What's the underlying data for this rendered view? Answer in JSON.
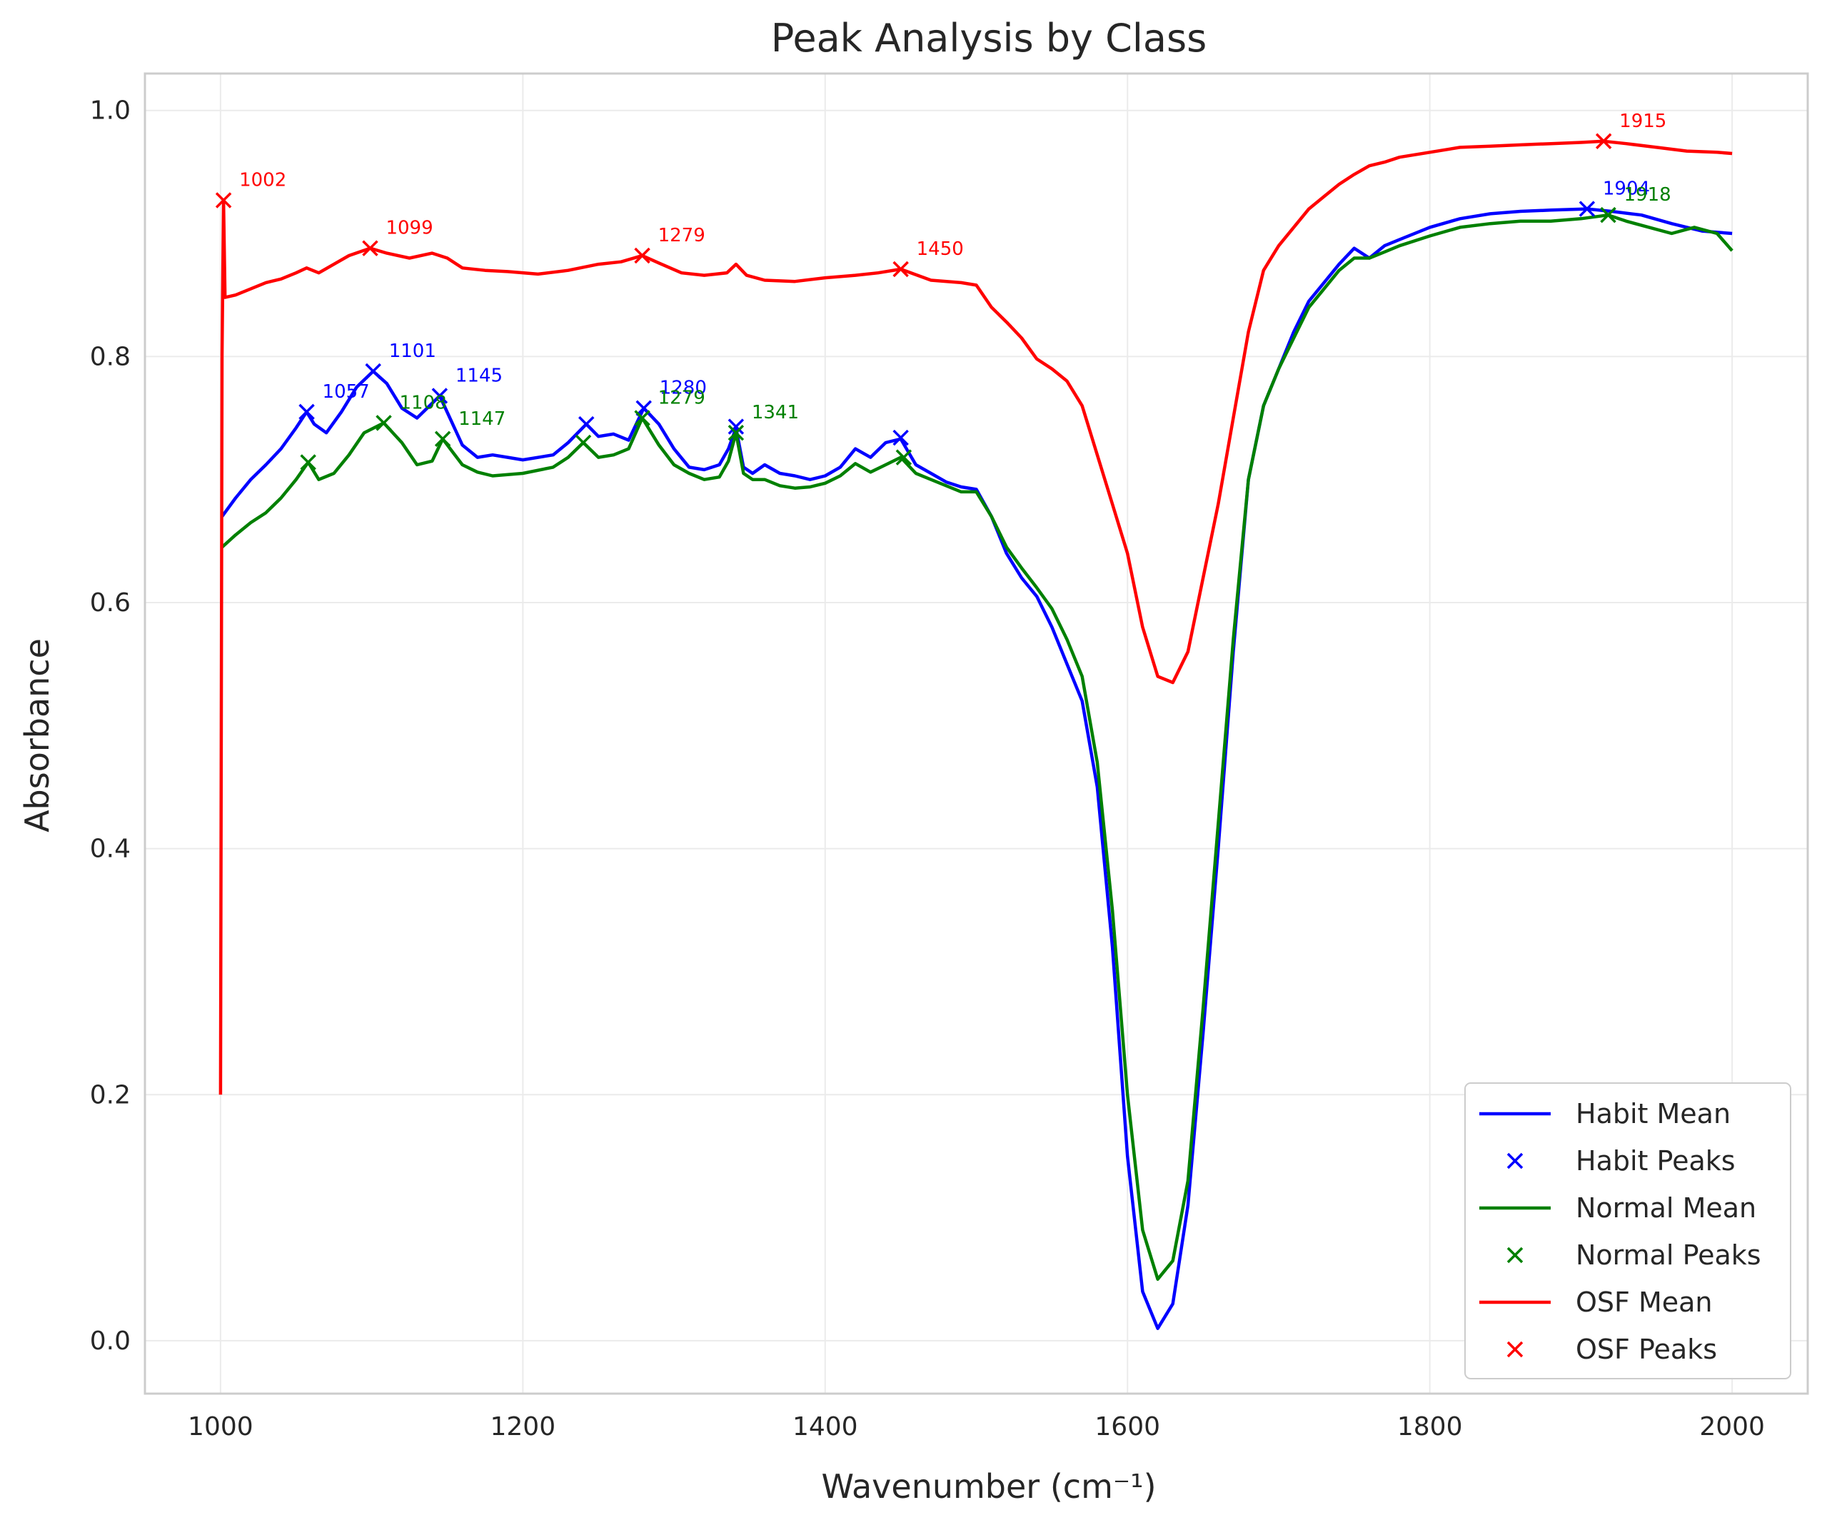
{
  "chart_data": {
    "type": "line",
    "title": "Peak Analysis by Class",
    "xlabel": "Wavenumber (cm⁻¹)",
    "ylabel": "Absorbance",
    "xlim": [
      950,
      2050
    ],
    "ylim": [
      -0.043,
      1.03
    ],
    "xticks": [
      1000,
      1200,
      1400,
      1600,
      1800,
      2000
    ],
    "xtick_labels": [
      "1000",
      "1200",
      "1400",
      "1600",
      "1800",
      "2000"
    ],
    "yticks": [
      0.0,
      0.2,
      0.4,
      0.6,
      0.8,
      1.0
    ],
    "ytick_labels": [
      "0.0",
      "0.2",
      "0.4",
      "0.6",
      "0.8",
      "1.0"
    ],
    "grid": true,
    "legend_position": "lower-right",
    "legend": [
      {
        "label": "Habit Mean",
        "kind": "line",
        "color": "#0000ff"
      },
      {
        "label": "Habit Peaks",
        "kind": "marker",
        "color": "#0000ff"
      },
      {
        "label": "Normal Mean",
        "kind": "line",
        "color": "#008000"
      },
      {
        "label": "Normal Peaks",
        "kind": "marker",
        "color": "#008000"
      },
      {
        "label": "OSF Mean",
        "kind": "line",
        "color": "#ff0000"
      },
      {
        "label": "OSF Peaks",
        "kind": "marker",
        "color": "#ff0000"
      }
    ],
    "series": [
      {
        "name": "Habit Mean",
        "color": "#0000ff",
        "x": [
          1001,
          1010,
          1020,
          1030,
          1040,
          1050,
          1057,
          1062,
          1070,
          1080,
          1090,
          1101,
          1110,
          1120,
          1130,
          1145,
          1160,
          1170,
          1180,
          1190,
          1200,
          1220,
          1230,
          1242,
          1250,
          1260,
          1270,
          1280,
          1290,
          1300,
          1310,
          1320,
          1330,
          1336,
          1341,
          1346,
          1352,
          1360,
          1370,
          1380,
          1390,
          1400,
          1410,
          1420,
          1430,
          1440,
          1450,
          1460,
          1470,
          1480,
          1490,
          1500,
          1510,
          1520,
          1530,
          1540,
          1550,
          1560,
          1570,
          1580,
          1590,
          1600,
          1610,
          1620,
          1630,
          1640,
          1650,
          1660,
          1670,
          1680,
          1690,
          1700,
          1710,
          1720,
          1730,
          1740,
          1750,
          1760,
          1770,
          1780,
          1800,
          1820,
          1840,
          1860,
          1880,
          1904,
          1920,
          1940,
          1960,
          1980,
          2000
        ],
        "y": [
          0.67,
          0.685,
          0.7,
          0.712,
          0.725,
          0.742,
          0.755,
          0.745,
          0.738,
          0.755,
          0.775,
          0.788,
          0.778,
          0.758,
          0.75,
          0.768,
          0.728,
          0.718,
          0.72,
          0.718,
          0.716,
          0.72,
          0.73,
          0.745,
          0.735,
          0.737,
          0.732,
          0.758,
          0.745,
          0.725,
          0.71,
          0.708,
          0.712,
          0.725,
          0.742,
          0.71,
          0.705,
          0.712,
          0.705,
          0.703,
          0.7,
          0.703,
          0.71,
          0.725,
          0.718,
          0.73,
          0.733,
          0.712,
          0.705,
          0.698,
          0.694,
          0.692,
          0.67,
          0.64,
          0.62,
          0.605,
          0.58,
          0.55,
          0.52,
          0.45,
          0.32,
          0.15,
          0.04,
          0.01,
          0.03,
          0.11,
          0.25,
          0.4,
          0.56,
          0.7,
          0.76,
          0.79,
          0.82,
          0.845,
          0.86,
          0.875,
          0.888,
          0.88,
          0.89,
          0.895,
          0.905,
          0.912,
          0.916,
          0.918,
          0.919,
          0.92,
          0.918,
          0.915,
          0.908,
          0.902,
          0.9
        ]
      },
      {
        "name": "Normal Mean",
        "color": "#008000",
        "x": [
          1001,
          1010,
          1020,
          1030,
          1040,
          1050,
          1058,
          1065,
          1075,
          1085,
          1095,
          1108,
          1120,
          1130,
          1140,
          1147,
          1160,
          1170,
          1180,
          1190,
          1200,
          1220,
          1230,
          1240,
          1250,
          1260,
          1270,
          1279,
          1290,
          1300,
          1310,
          1320,
          1330,
          1336,
          1341,
          1346,
          1352,
          1360,
          1370,
          1380,
          1390,
          1400,
          1410,
          1420,
          1430,
          1440,
          1450,
          1460,
          1470,
          1480,
          1490,
          1500,
          1510,
          1520,
          1530,
          1540,
          1550,
          1560,
          1570,
          1580,
          1590,
          1600,
          1610,
          1620,
          1630,
          1640,
          1650,
          1660,
          1670,
          1680,
          1690,
          1700,
          1710,
          1720,
          1730,
          1740,
          1750,
          1760,
          1770,
          1780,
          1800,
          1820,
          1840,
          1860,
          1880,
          1900,
          1918,
          1930,
          1945,
          1960,
          1975,
          1990,
          2000
        ],
        "y": [
          0.645,
          0.655,
          0.665,
          0.673,
          0.685,
          0.7,
          0.714,
          0.7,
          0.705,
          0.72,
          0.738,
          0.746,
          0.73,
          0.712,
          0.715,
          0.733,
          0.712,
          0.706,
          0.703,
          0.704,
          0.705,
          0.71,
          0.718,
          0.73,
          0.718,
          0.72,
          0.725,
          0.75,
          0.728,
          0.712,
          0.705,
          0.7,
          0.702,
          0.715,
          0.738,
          0.705,
          0.7,
          0.7,
          0.695,
          0.693,
          0.694,
          0.697,
          0.703,
          0.713,
          0.706,
          0.712,
          0.718,
          0.705,
          0.7,
          0.695,
          0.69,
          0.69,
          0.67,
          0.645,
          0.628,
          0.612,
          0.595,
          0.57,
          0.54,
          0.47,
          0.35,
          0.2,
          0.09,
          0.05,
          0.065,
          0.13,
          0.27,
          0.42,
          0.57,
          0.7,
          0.76,
          0.79,
          0.815,
          0.84,
          0.855,
          0.87,
          0.88,
          0.88,
          0.885,
          0.89,
          0.898,
          0.905,
          0.908,
          0.91,
          0.91,
          0.912,
          0.915,
          0.91,
          0.905,
          0.9,
          0.905,
          0.9,
          0.886
        ]
      },
      {
        "name": "OSF Mean",
        "color": "#ff0000",
        "x": [
          1000,
          1001,
          1002,
          1003,
          1010,
          1020,
          1030,
          1040,
          1050,
          1057,
          1065,
          1075,
          1085,
          1099,
          1110,
          1125,
          1140,
          1150,
          1160,
          1175,
          1190,
          1210,
          1230,
          1250,
          1265,
          1279,
          1290,
          1305,
          1320,
          1335,
          1341,
          1348,
          1360,
          1380,
          1400,
          1420,
          1435,
          1450,
          1470,
          1490,
          1500,
          1510,
          1520,
          1530,
          1540,
          1550,
          1560,
          1570,
          1580,
          1590,
          1600,
          1610,
          1620,
          1630,
          1640,
          1650,
          1660,
          1670,
          1680,
          1690,
          1700,
          1710,
          1720,
          1730,
          1740,
          1750,
          1760,
          1770,
          1780,
          1800,
          1820,
          1840,
          1860,
          1880,
          1900,
          1915,
          1930,
          1950,
          1970,
          1990,
          2000
        ],
        "y": [
          0.2,
          0.8,
          0.927,
          0.848,
          0.85,
          0.855,
          0.86,
          0.863,
          0.868,
          0.872,
          0.868,
          0.875,
          0.882,
          0.888,
          0.884,
          0.88,
          0.884,
          0.88,
          0.872,
          0.87,
          0.869,
          0.867,
          0.87,
          0.875,
          0.877,
          0.882,
          0.876,
          0.868,
          0.866,
          0.868,
          0.875,
          0.866,
          0.862,
          0.861,
          0.864,
          0.866,
          0.868,
          0.871,
          0.862,
          0.86,
          0.858,
          0.84,
          0.828,
          0.815,
          0.798,
          0.79,
          0.78,
          0.76,
          0.72,
          0.68,
          0.64,
          0.58,
          0.54,
          0.535,
          0.56,
          0.62,
          0.68,
          0.75,
          0.82,
          0.87,
          0.89,
          0.905,
          0.92,
          0.93,
          0.94,
          0.948,
          0.955,
          0.958,
          0.962,
          0.966,
          0.97,
          0.971,
          0.972,
          0.973,
          0.974,
          0.975,
          0.973,
          0.97,
          0.967,
          0.966,
          0.965
        ]
      }
    ],
    "peaks": [
      {
        "series": "Habit",
        "color": "#0000ff",
        "points": [
          {
            "x": 1057,
            "y": 0.755,
            "label": "1057"
          },
          {
            "x": 1101,
            "y": 0.788,
            "label": "1101"
          },
          {
            "x": 1145,
            "y": 0.768,
            "label": "1145"
          },
          {
            "x": 1242,
            "y": 0.745,
            "label": ""
          },
          {
            "x": 1280,
            "y": 0.758,
            "label": "1280"
          },
          {
            "x": 1341,
            "y": 0.743,
            "label": ""
          },
          {
            "x": 1450,
            "y": 0.734,
            "label": ""
          },
          {
            "x": 1904,
            "y": 0.92,
            "label": "1904"
          }
        ]
      },
      {
        "series": "Normal",
        "color": "#008000",
        "points": [
          {
            "x": 1058,
            "y": 0.714,
            "label": ""
          },
          {
            "x": 1108,
            "y": 0.746,
            "label": "1108"
          },
          {
            "x": 1147,
            "y": 0.733,
            "label": "1147"
          },
          {
            "x": 1240,
            "y": 0.73,
            "label": ""
          },
          {
            "x": 1279,
            "y": 0.75,
            "label": "1279"
          },
          {
            "x": 1341,
            "y": 0.738,
            "label": "1341"
          },
          {
            "x": 1452,
            "y": 0.718,
            "label": ""
          },
          {
            "x": 1918,
            "y": 0.915,
            "label": "1918"
          }
        ]
      },
      {
        "series": "OSF",
        "color": "#ff0000",
        "points": [
          {
            "x": 1002,
            "y": 0.927,
            "label": "1002"
          },
          {
            "x": 1099,
            "y": 0.888,
            "label": "1099"
          },
          {
            "x": 1279,
            "y": 0.882,
            "label": "1279"
          },
          {
            "x": 1450,
            "y": 0.871,
            "label": "1450"
          },
          {
            "x": 1915,
            "y": 0.975,
            "label": "1915"
          }
        ]
      }
    ]
  }
}
